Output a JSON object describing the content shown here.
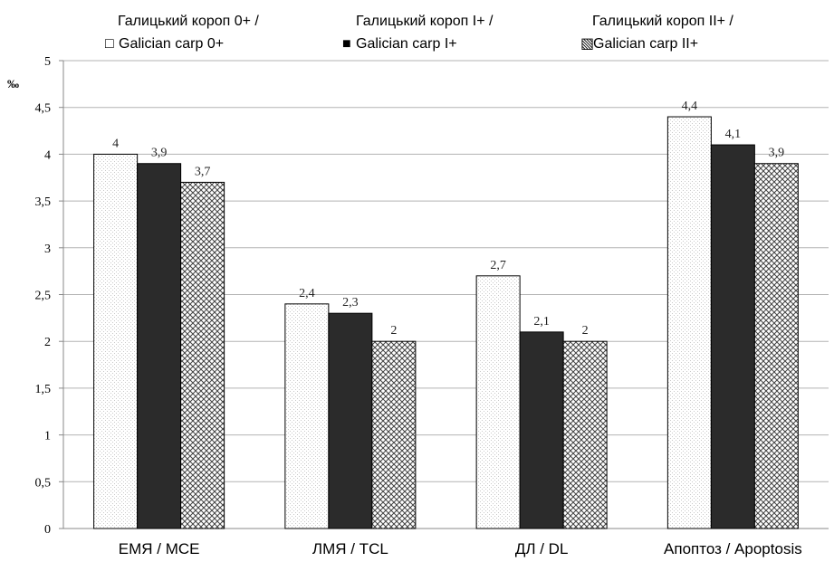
{
  "chart_data": {
    "type": "bar",
    "ylabel": "‰",
    "ylim": [
      0,
      5
    ],
    "ytick_step": 0.5,
    "yticks": [
      "0",
      "0,5",
      "1",
      "1,5",
      "2",
      "2,5",
      "3",
      "3,5",
      "4",
      "4,5",
      "5"
    ],
    "categories": [
      "ЕМЯ / MCE",
      "ЛМЯ / TCL",
      "ДЛ / DL",
      "Апоптоз / Apoptosis"
    ],
    "series": [
      {
        "name_line1": "Галицький короп 0+ /",
        "name_line2": "Galician carp 0+",
        "legend_symbol": "□",
        "pattern": "dots",
        "values": [
          4,
          2.4,
          2.7,
          4.4
        ],
        "labels": [
          "4",
          "2,4",
          "2,7",
          "4,4"
        ]
      },
      {
        "name_line1": "Галицький короп I+ /",
        "name_line2": "Galician carp I+",
        "legend_symbol": "■",
        "pattern": "solid",
        "values": [
          3.9,
          2.3,
          2.1,
          4.1
        ],
        "labels": [
          "3,9",
          "2,3",
          "2,1",
          "4,1"
        ]
      },
      {
        "name_line1": "Галицький короп II+ /",
        "name_line2": "Galician carp II+",
        "legend_symbol": "▧",
        "pattern": "crosshatch",
        "values": [
          3.7,
          2,
          2,
          3.9
        ],
        "labels": [
          "3,7",
          "2",
          "2",
          "3,9"
        ]
      }
    ],
    "grid": true,
    "legend_position": "top"
  },
  "colors": {
    "solid_fill": "#2b2b2b",
    "grid": "#b3b3b3",
    "bar_stroke": "#000000"
  }
}
